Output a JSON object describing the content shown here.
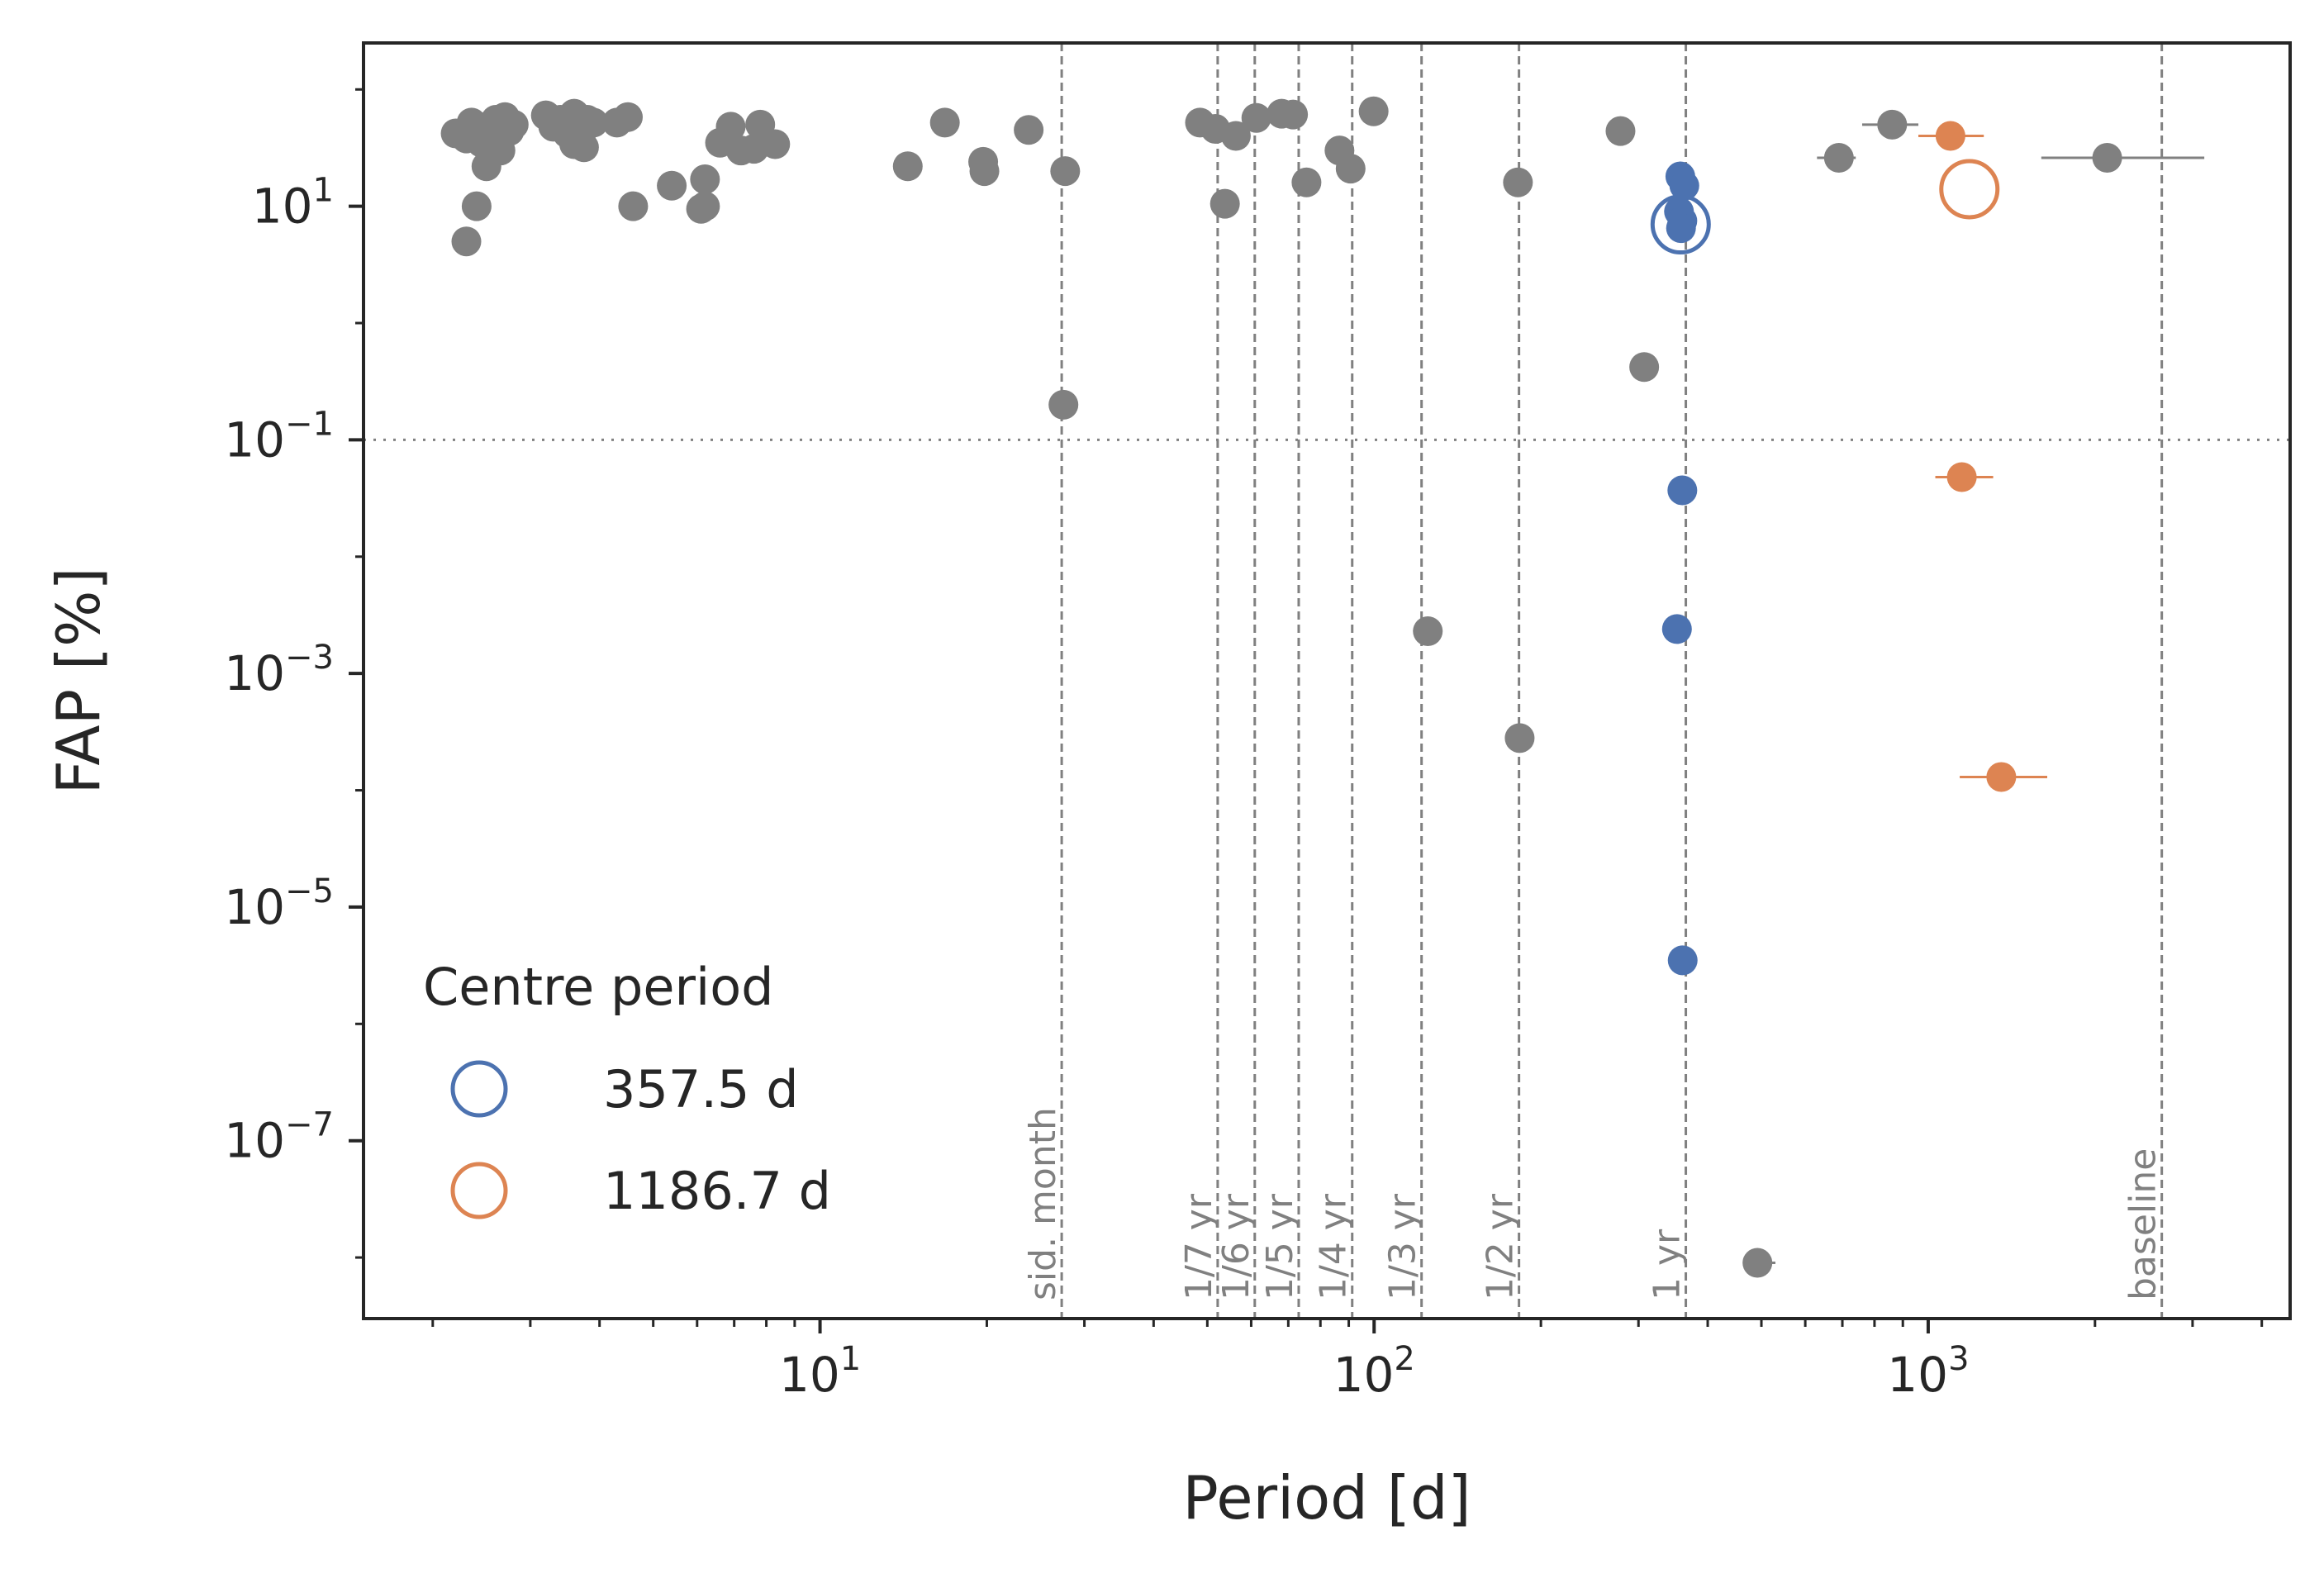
{
  "chart_data": {
    "type": "scatter",
    "xscale": "log",
    "yscale": "log",
    "xlim": [
      1.5,
      4500
    ],
    "ylim": [
      3e-09,
      250
    ],
    "xlabel": "Period [d]",
    "ylabel": "FAP [%]",
    "grid": false,
    "x_ticks": [
      {
        "base": "10",
        "exp": "1",
        "value": 10
      },
      {
        "base": "10",
        "exp": "2",
        "value": 100
      },
      {
        "base": "10",
        "exp": "3",
        "value": 1000
      }
    ],
    "y_ticks": [
      {
        "base": "10",
        "exp": "1",
        "value": 10
      },
      {
        "base": "10",
        "exp": "−1",
        "value": 0.1
      },
      {
        "base": "10",
        "exp": "−3",
        "value": 0.001
      },
      {
        "base": "10",
        "exp": "−5",
        "value": 1e-05
      },
      {
        "base": "10",
        "exp": "−7",
        "value": 1e-07
      }
    ],
    "threshold_fap": 0.1,
    "vertical_lines": [
      {
        "x": 27.3,
        "label": "sid. month"
      },
      {
        "x": 52.2,
        "label": "1/7 yr"
      },
      {
        "x": 60.9,
        "label": "1/6 yr"
      },
      {
        "x": 73.1,
        "label": "1/5 yr"
      },
      {
        "x": 91.3,
        "label": "1/4 yr"
      },
      {
        "x": 121.8,
        "label": "1/3 yr"
      },
      {
        "x": 182.6,
        "label": "1/2 yr"
      },
      {
        "x": 365.25,
        "label": "1 yr"
      },
      {
        "x": 2640,
        "label": "baseline"
      }
    ],
    "legend": {
      "title": "Centre period",
      "position": "lower-left",
      "entries": [
        {
          "label": "357.5 d",
          "color": "#4c72b0"
        },
        {
          "label": "1186.7 d",
          "color": "#dd8452"
        }
      ]
    },
    "series": [
      {
        "color": "#808080",
        "points": [
          [
            2.2,
            42
          ],
          [
            2.3,
            38
          ],
          [
            2.35,
            52
          ],
          [
            2.4,
            45
          ],
          [
            2.45,
            35
          ],
          [
            2.5,
            48
          ],
          [
            2.55,
            40
          ],
          [
            2.6,
            55
          ],
          [
            2.65,
            30
          ],
          [
            2.7,
            58
          ],
          [
            2.5,
            22
          ],
          [
            2.3,
            5
          ],
          [
            2.4,
            10
          ],
          [
            2.75,
            44
          ],
          [
            2.8,
            50
          ],
          [
            3.2,
            60
          ],
          [
            3.3,
            48
          ],
          [
            3.4,
            55
          ],
          [
            3.5,
            42
          ],
          [
            3.6,
            62
          ],
          [
            3.7,
            38
          ],
          [
            3.8,
            55
          ],
          [
            3.9,
            52
          ],
          [
            3.6,
            34
          ],
          [
            3.75,
            32
          ],
          [
            4.3,
            52
          ],
          [
            4.5,
            58
          ],
          [
            4.6,
            10
          ],
          [
            5.4,
            15
          ],
          [
            6.1,
            9.5
          ],
          [
            6.2,
            10
          ],
          [
            6.2,
            17
          ],
          [
            6.6,
            35
          ],
          [
            6.9,
            48
          ],
          [
            7.2,
            30
          ],
          [
            7.6,
            31
          ],
          [
            7.8,
            50
          ],
          [
            8.3,
            34
          ],
          [
            14.4,
            22
          ],
          [
            16.8,
            52
          ],
          [
            19.7,
            24
          ],
          [
            19.8,
            20
          ],
          [
            23.8,
            45
          ],
          [
            27.7,
            20
          ],
          [
            27.5,
            0.2
          ],
          [
            48.5,
            52
          ],
          [
            51.7,
            46
          ],
          [
            53.8,
            10.5
          ],
          [
            56.3,
            40
          ],
          [
            61.3,
            57
          ],
          [
            68.1,
            62
          ],
          [
            71.4,
            61
          ],
          [
            75.5,
            16
          ],
          [
            86.6,
            30
          ],
          [
            90.7,
            21
          ],
          [
            99.8,
            65
          ],
          [
            125.0,
            0.0023
          ],
          [
            181.8,
            16
          ],
          [
            183.1,
            0.00028
          ],
          [
            278.4,
            44
          ],
          [
            307.2,
            0.42
          ],
          [
            491.8,
            9e-09
          ],
          [
            690,
            26
          ],
          [
            861,
            50
          ],
          [
            2104,
            26
          ]
        ],
        "xerr": [
          {
            "x": 690,
            "lo": 630,
            "hi": 740
          },
          {
            "x": 861,
            "lo": 760,
            "hi": 960
          },
          {
            "x": 2104,
            "lo": 1600,
            "hi": 3150
          },
          {
            "x": 491.8,
            "lo": 465,
            "hi": 530
          }
        ]
      },
      {
        "color": "#4c72b0",
        "points": [
          [
            357.0,
            18
          ],
          [
            363.0,
            15
          ],
          [
            355.0,
            9
          ],
          [
            360.0,
            7.5
          ],
          [
            358.0,
            6.5
          ],
          [
            360.0,
            0.037
          ],
          [
            352.0,
            0.0024
          ],
          [
            360.5,
            3.5e-06
          ]
        ],
        "centre": {
          "x": 357.5,
          "fap": 7
        }
      },
      {
        "color": "#dd8452",
        "points": [
          [
            1097,
            40
          ],
          [
            1150,
            0.048
          ],
          [
            1355,
            0.00013
          ]
        ],
        "xerr": [
          {
            "x": 1097,
            "lo": 960,
            "hi": 1260
          },
          {
            "x": 1150,
            "lo": 1030,
            "hi": 1310
          },
          {
            "x": 1355,
            "lo": 1140,
            "hi": 1640
          }
        ],
        "centre": {
          "x": 1186.7,
          "fap": 14
        }
      }
    ]
  }
}
